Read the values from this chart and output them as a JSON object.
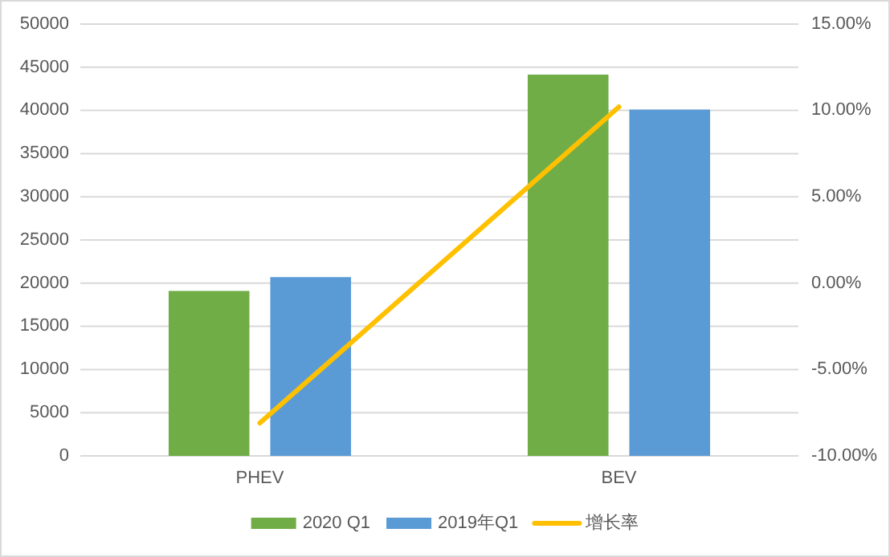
{
  "chart_data": {
    "type": "bar",
    "categories": [
      "PHEV",
      "BEV"
    ],
    "series": [
      {
        "name": "2020 Q1",
        "color": "#70ad47",
        "values": [
          19100,
          44150
        ]
      },
      {
        "name": "2019年Q1",
        "color": "#5b9bd5",
        "values": [
          20700,
          40100
        ]
      },
      {
        "name": "增长率",
        "color": "#ffc000",
        "type": "line",
        "axis": "y2",
        "values": [
          -8.1,
          10.2
        ]
      }
    ],
    "ylim": [
      0,
      50000
    ],
    "yticks": [
      0,
      5000,
      10000,
      15000,
      20000,
      25000,
      30000,
      35000,
      40000,
      45000,
      50000
    ],
    "y2lim": [
      -10,
      15
    ],
    "y2ticks": [
      {
        "value": -10,
        "label": "-10.00%"
      },
      {
        "value": -5,
        "label": "-5.00%"
      },
      {
        "value": 0,
        "label": "0.00%"
      },
      {
        "value": 5,
        "label": "5.00%"
      },
      {
        "value": 10,
        "label": "10.00%"
      },
      {
        "value": 15,
        "label": "15.00%"
      }
    ],
    "grid": "y",
    "legend": "bottom",
    "marker": "none"
  }
}
